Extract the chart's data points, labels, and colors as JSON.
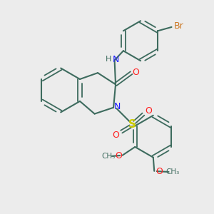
{
  "bg_color": "#ececec",
  "bond_color": "#3d6b5e",
  "N_color": "#1a1aff",
  "O_color": "#ff2020",
  "S_color": "#cccc00",
  "Br_color": "#cc7722",
  "lw": 1.5,
  "dlw": 1.3,
  "fig_w": 3.0,
  "fig_h": 3.0,
  "dpi": 100,
  "xlim": [
    0,
    10
  ],
  "ylim": [
    0,
    10
  ]
}
